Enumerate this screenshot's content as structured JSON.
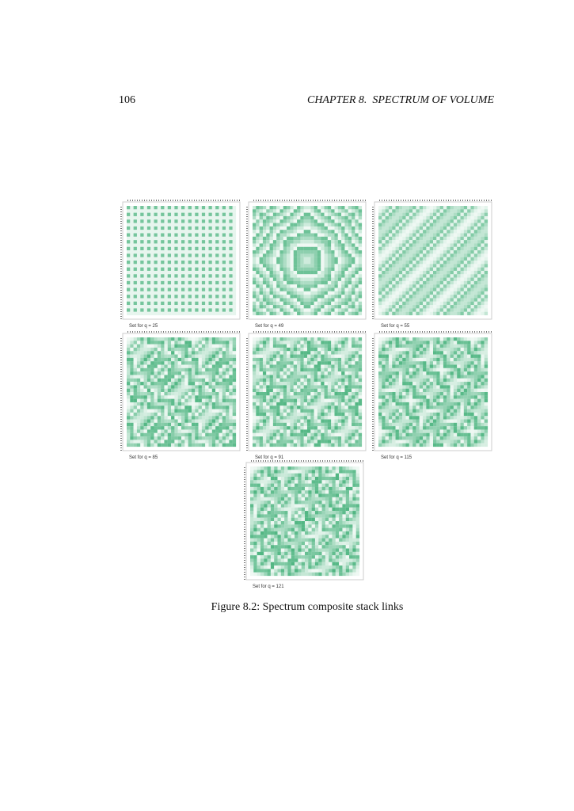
{
  "header": {
    "page_number": "106",
    "running_head": "CHAPTER 8.  SPECTRUM OF VOLUME"
  },
  "figure": {
    "panels": [
      {
        "label": "Set for q = 25"
      },
      {
        "label": "Set for q = 49"
      },
      {
        "label": "Set for q = 55"
      },
      {
        "label": "Set for q = 85"
      },
      {
        "label": "Set for q = 91"
      },
      {
        "label": "Set for q = 115"
      },
      {
        "label": "Set for q = 121"
      }
    ],
    "caption": "Figure 8.2: Spectrum composite stack links"
  }
}
